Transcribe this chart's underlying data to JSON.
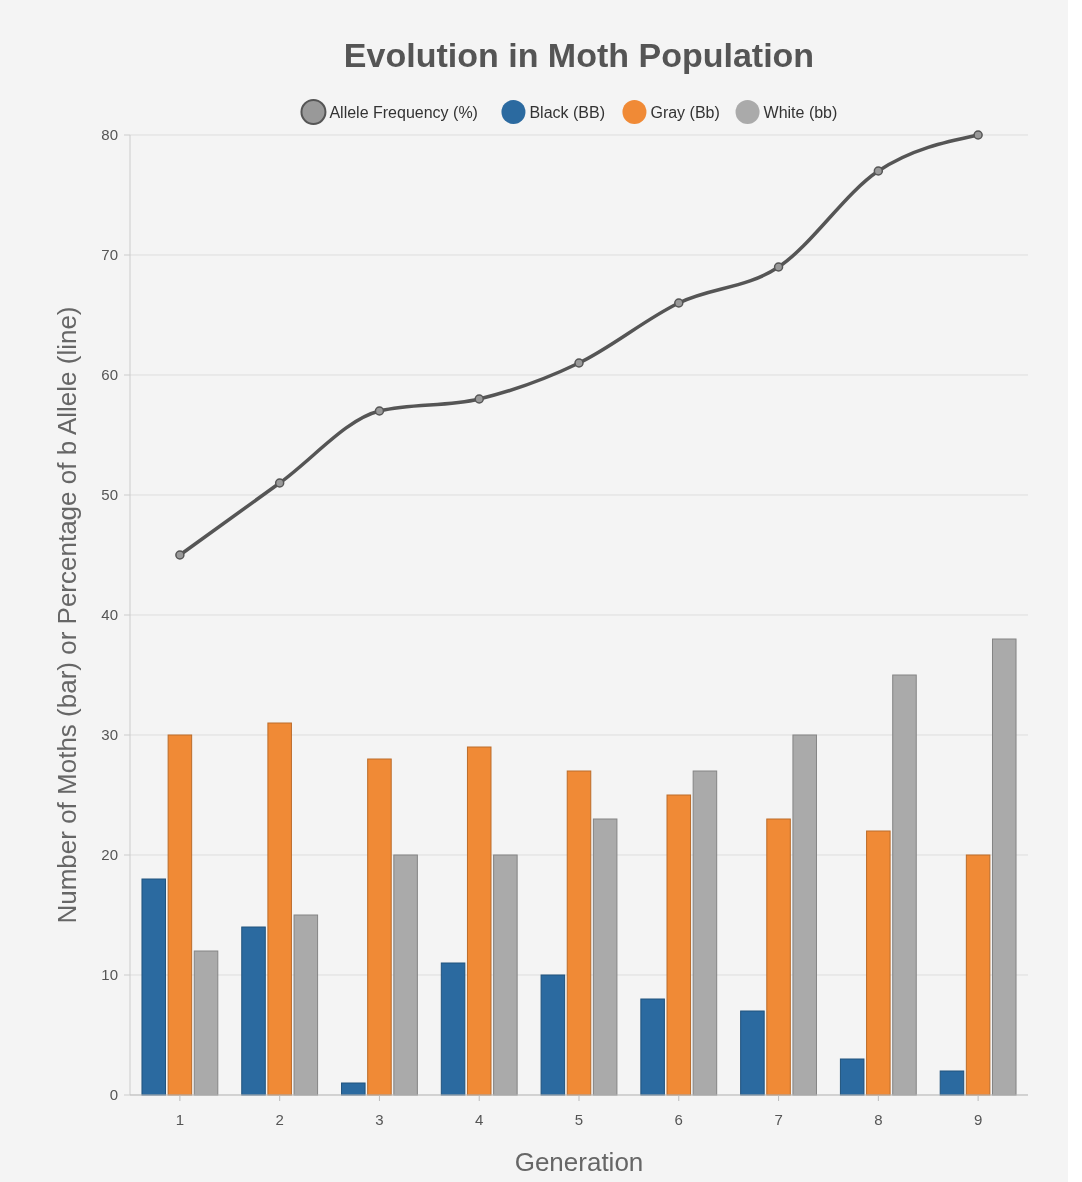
{
  "chart_data": {
    "type": "bar",
    "title": "Evolution in Moth Population",
    "xlabel": "Generation",
    "ylabel": "Number of Moths (bar) or Percentage of b Allele (line)",
    "categories": [
      "1",
      "2",
      "3",
      "4",
      "5",
      "6",
      "7",
      "8",
      "9"
    ],
    "series": [
      {
        "name": "Allele Frequency (%)",
        "type": "line",
        "color": "#555555",
        "values": [
          45,
          51,
          57,
          58,
          61,
          66,
          69,
          77,
          80
        ]
      },
      {
        "name": "Black (BB)",
        "color": "#2b6aa0",
        "values": [
          18,
          14,
          1,
          11,
          10,
          8,
          7,
          3,
          2
        ]
      },
      {
        "name": "Gray (Bb)",
        "color": "#f08a36",
        "values": [
          30,
          31,
          28,
          29,
          27,
          25,
          23,
          22,
          20
        ]
      },
      {
        "name": "White (bb)",
        "color": "#aaaaaa",
        "values": [
          12,
          15,
          20,
          20,
          23,
          27,
          30,
          35,
          38
        ]
      }
    ],
    "ylim": [
      0,
      80
    ],
    "yticks": [
      0,
      10,
      20,
      30,
      40,
      50,
      60,
      70,
      80
    ],
    "grid": "y",
    "legend": "top",
    "marker": "circle"
  }
}
